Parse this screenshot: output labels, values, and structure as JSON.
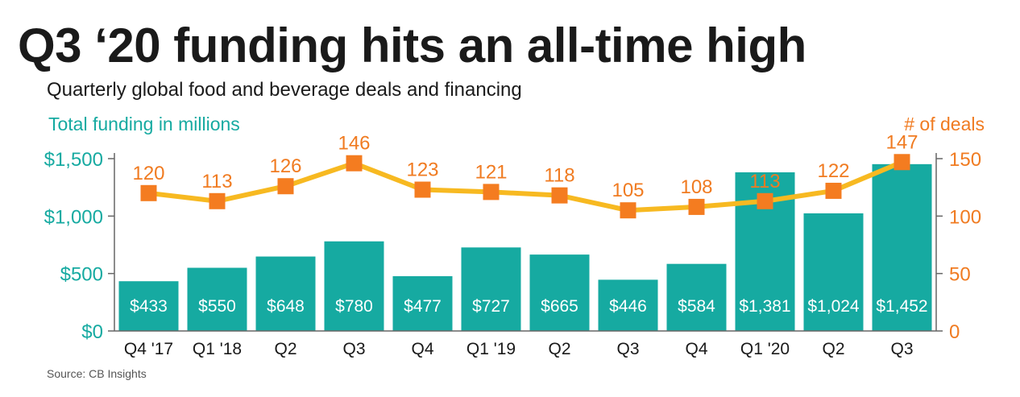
{
  "title": "Q3 ‘20 funding hits an all-time high",
  "subtitle": "Quarterly global food and beverage deals and financing",
  "source": "Source: CB Insights",
  "colors": {
    "bars": "#16aaa1",
    "line": "#f7b921",
    "markers": "#f47c20",
    "left_axis": "#16aaa1",
    "right_axis": "#f07b21",
    "bar_label": "#ffffff"
  },
  "chart_data": {
    "type": "bar",
    "categories": [
      "Q4 '17",
      "Q1 '18",
      "Q2",
      "Q3",
      "Q4",
      "Q1 '19",
      "Q2",
      "Q3",
      "Q4",
      "Q1 '20",
      "Q2",
      "Q3"
    ],
    "series": [
      {
        "name": "Total funding in millions",
        "type": "bar",
        "axis": "left",
        "values": [
          433,
          550,
          648,
          780,
          477,
          727,
          665,
          446,
          584,
          1381,
          1024,
          1452
        ],
        "labels": [
          "$433",
          "$550",
          "$648",
          "$780",
          "$477",
          "$727",
          "$665",
          "$446",
          "$584",
          "$1,381",
          "$1,024",
          "$1,452"
        ]
      },
      {
        "name": "# of deals",
        "type": "line",
        "axis": "right",
        "values": [
          120,
          113,
          126,
          146,
          123,
          121,
          118,
          105,
          108,
          113,
          122,
          147
        ],
        "labels": [
          "120",
          "113",
          "126",
          "146",
          "123",
          "121",
          "118",
          "105",
          "108",
          "113",
          "122",
          "147"
        ]
      }
    ],
    "y_left": {
      "label": "Total funding in millions",
      "range": [
        0,
        1500
      ],
      "ticks": [
        0,
        500,
        1000,
        1500
      ],
      "tick_labels": [
        "$0",
        "$500",
        "$1,000",
        "$1,500"
      ]
    },
    "y_right": {
      "label": "# of deals",
      "range": [
        0,
        150
      ],
      "ticks": [
        0,
        50,
        100,
        150
      ],
      "tick_labels": [
        "0",
        "50",
        "100",
        "150"
      ]
    },
    "grid": false,
    "legend": "none"
  }
}
